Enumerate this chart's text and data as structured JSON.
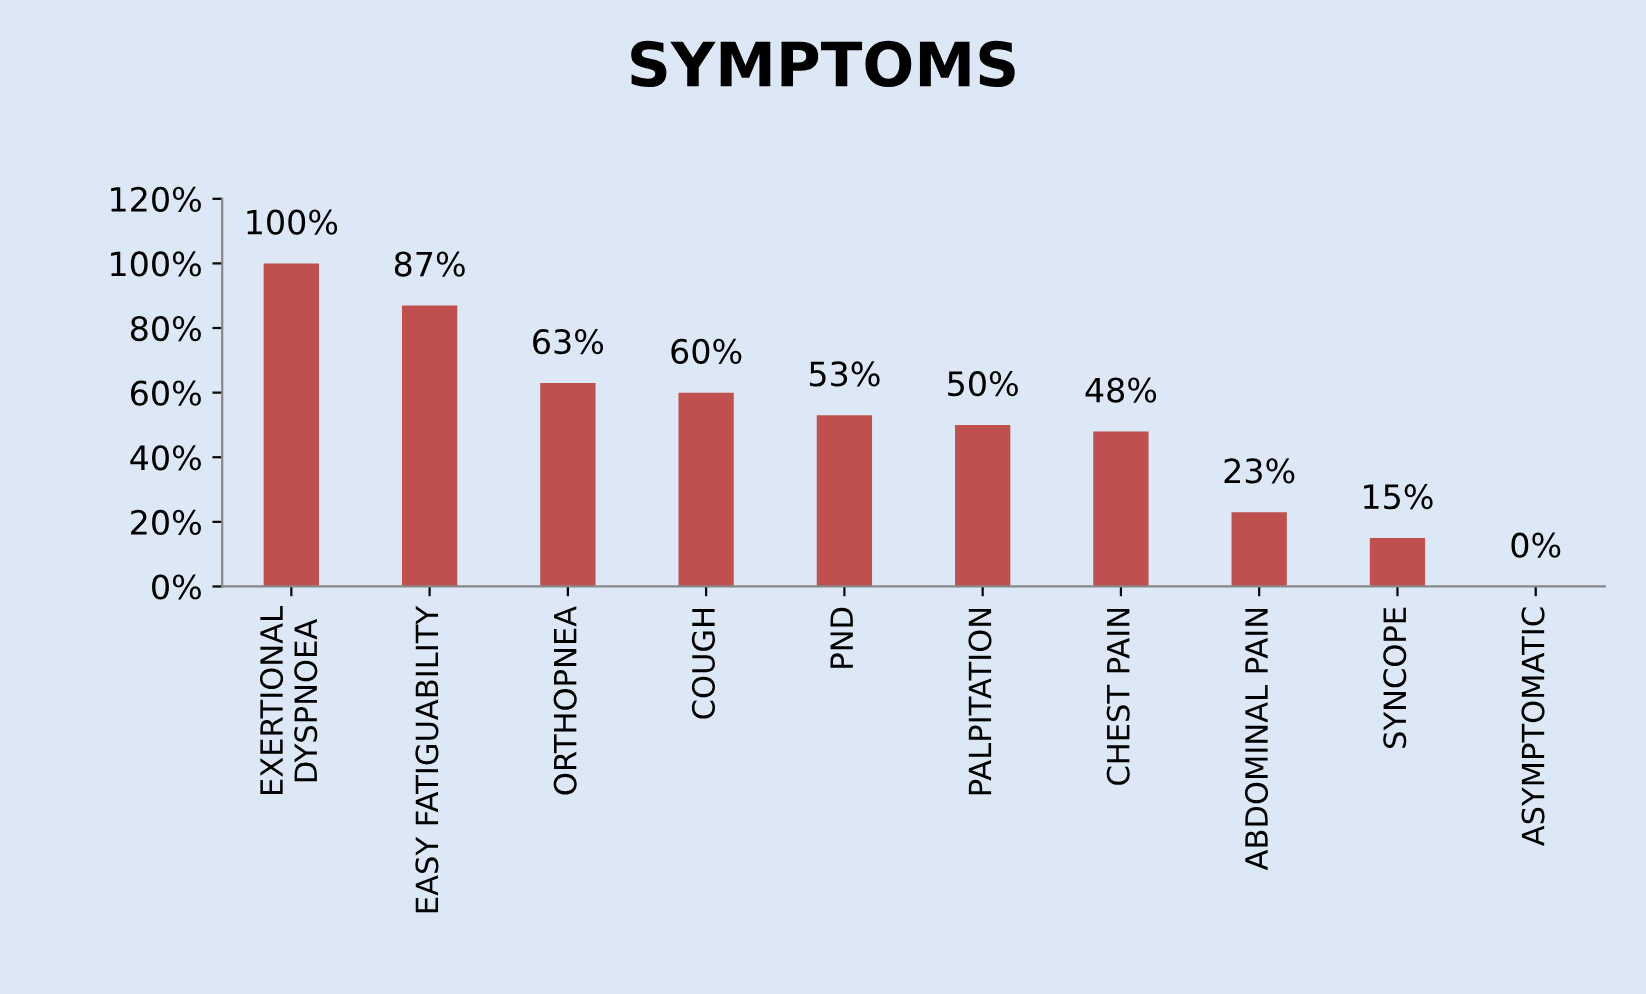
{
  "chart_data": {
    "type": "bar",
    "title": "SYMPTOMS",
    "categories": [
      "EXERTIONAL\nDYSPNOEA",
      "EASY FATIGUABILITY",
      "ORTHOPNEA",
      "COUGH",
      "PND",
      "PALPITATION",
      "CHEST PAIN",
      "ABDOMINAL PAIN",
      "SYNCOPE",
      "ASYMPTOMATIC"
    ],
    "values": [
      100,
      87,
      63,
      60,
      53,
      50,
      48,
      23,
      15,
      0
    ],
    "value_labels": [
      "100%",
      "87%",
      "63%",
      "60%",
      "53%",
      "50%",
      "48%",
      "23%",
      "15%",
      "0%"
    ],
    "color": "#c0504d",
    "ylim": [
      0,
      120
    ],
    "yticks": [
      {
        "value": 0,
        "label": "0%"
      },
      {
        "value": 20,
        "label": "20%"
      },
      {
        "value": 40,
        "label": "40%"
      },
      {
        "value": 60,
        "label": "60%"
      },
      {
        "value": 80,
        "label": "80%"
      },
      {
        "value": 100,
        "label": "100%"
      },
      {
        "value": 120,
        "label": "120%"
      }
    ],
    "grid": false,
    "legend": false
  }
}
